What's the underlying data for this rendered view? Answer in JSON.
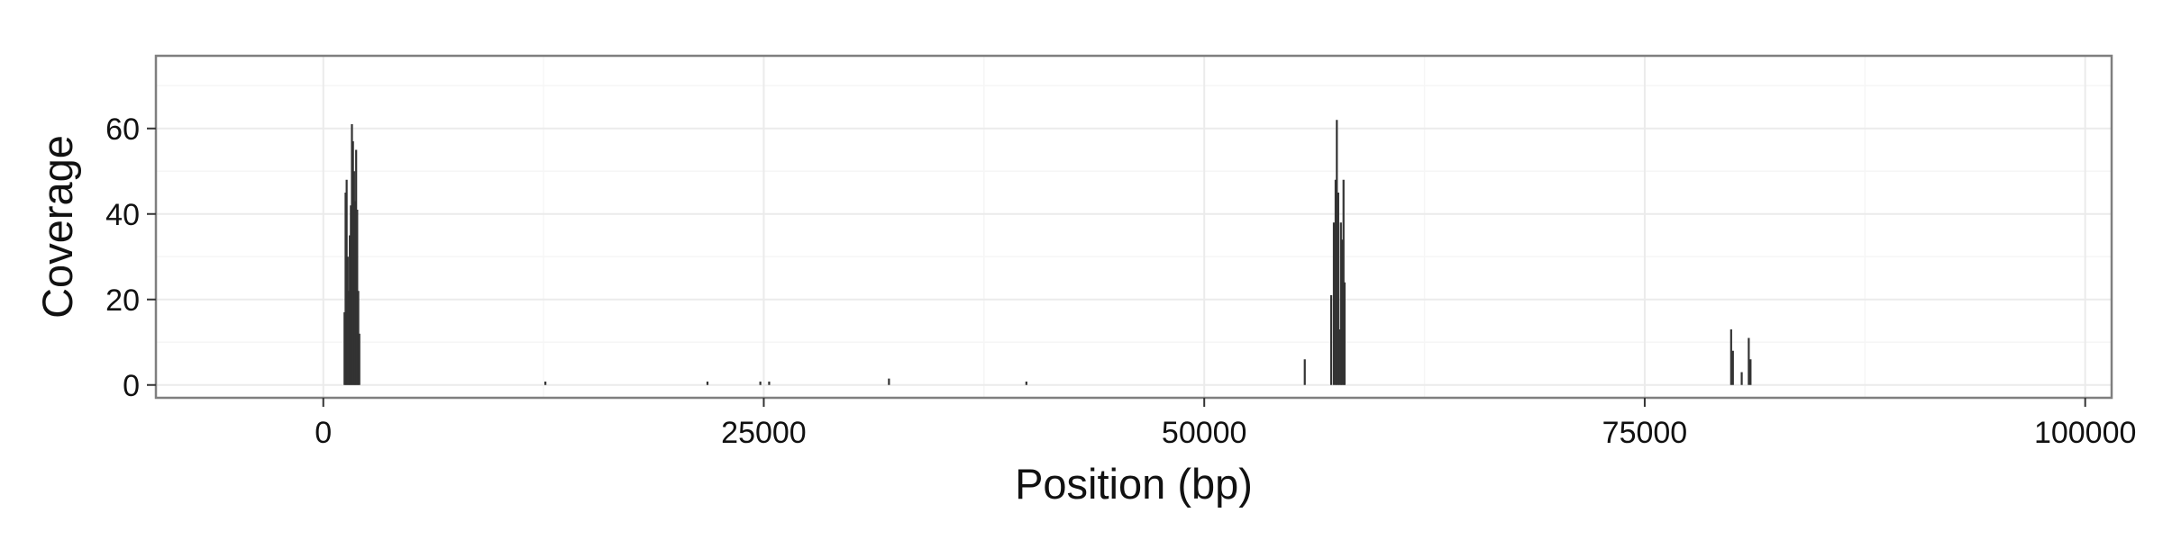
{
  "chart_data": {
    "type": "bar",
    "title": "",
    "xlabel": "Position (bp)",
    "ylabel": "Coverage",
    "xlim": [
      -9500,
      101500
    ],
    "ylim": [
      -3,
      77
    ],
    "x_ticks": [
      0,
      25000,
      50000,
      75000,
      100000
    ],
    "x_tick_labels": [
      "0",
      "25000",
      "50000",
      "75000",
      "100000"
    ],
    "y_ticks": [
      0,
      20,
      40,
      60
    ],
    "y_tick_labels": [
      "0",
      "20",
      "40",
      "60"
    ],
    "grid": true,
    "legend": "none",
    "colors": {
      "bar": "#333333",
      "panel_border": "#7f7f7f",
      "grid_major": "#ebebeb",
      "grid_minor": "#f6f6f6"
    },
    "points": [
      {
        "x": 1200,
        "y": 17
      },
      {
        "x": 1260,
        "y": 45
      },
      {
        "x": 1320,
        "y": 48
      },
      {
        "x": 1380,
        "y": 30
      },
      {
        "x": 1440,
        "y": 22
      },
      {
        "x": 1500,
        "y": 35
      },
      {
        "x": 1560,
        "y": 42
      },
      {
        "x": 1620,
        "y": 61
      },
      {
        "x": 1680,
        "y": 57
      },
      {
        "x": 1740,
        "y": 50
      },
      {
        "x": 1800,
        "y": 43
      },
      {
        "x": 1860,
        "y": 55
      },
      {
        "x": 1920,
        "y": 41
      },
      {
        "x": 1980,
        "y": 22
      },
      {
        "x": 2040,
        "y": 12
      },
      {
        "x": 12600,
        "y": 0.8
      },
      {
        "x": 21800,
        "y": 0.8
      },
      {
        "x": 24800,
        "y": 0.8
      },
      {
        "x": 25300,
        "y": 0.8
      },
      {
        "x": 32100,
        "y": 1.5
      },
      {
        "x": 39900,
        "y": 0.8
      },
      {
        "x": 55700,
        "y": 6
      },
      {
        "x": 57200,
        "y": 21
      },
      {
        "x": 57350,
        "y": 38
      },
      {
        "x": 57450,
        "y": 48
      },
      {
        "x": 57520,
        "y": 62
      },
      {
        "x": 57600,
        "y": 45
      },
      {
        "x": 57680,
        "y": 13
      },
      {
        "x": 57750,
        "y": 38
      },
      {
        "x": 57820,
        "y": 34
      },
      {
        "x": 57900,
        "y": 48
      },
      {
        "x": 57960,
        "y": 24
      },
      {
        "x": 79900,
        "y": 13
      },
      {
        "x": 80000,
        "y": 8
      },
      {
        "x": 80500,
        "y": 3
      },
      {
        "x": 80900,
        "y": 11
      },
      {
        "x": 81000,
        "y": 6
      }
    ]
  }
}
